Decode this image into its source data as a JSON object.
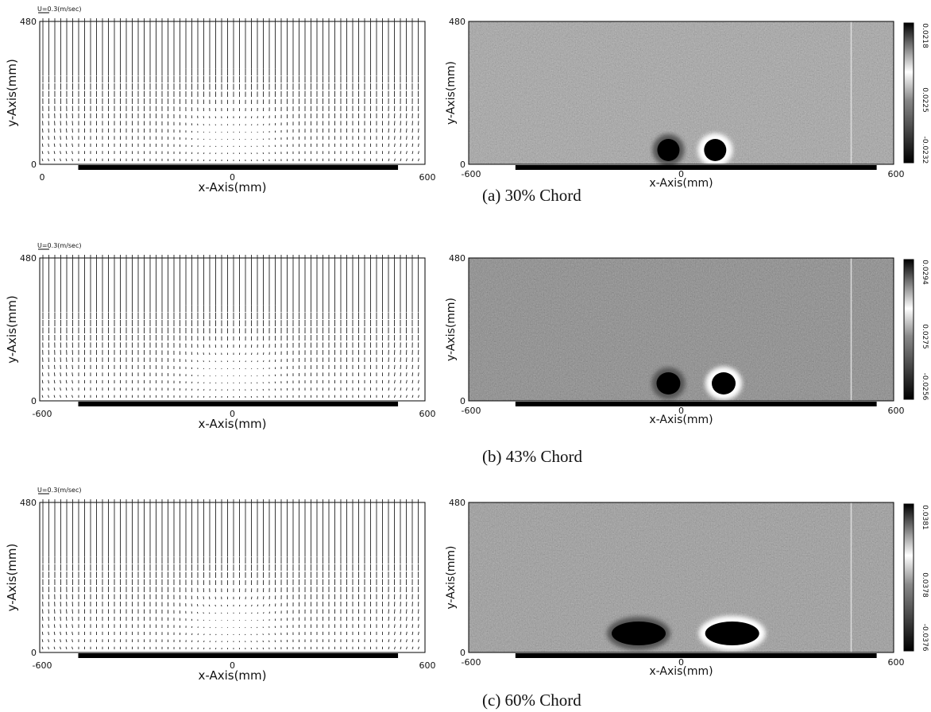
{
  "figures": [
    {
      "vector_plot": {
        "scale_label": "U=0.3(m/sec)",
        "y_label": "y-Axis(mm)",
        "x_label": "x-Axis(mm)",
        "y_ticks": [
          "480",
          "0"
        ],
        "x_ticks": [
          "0",
          "0",
          "600"
        ]
      },
      "contour_plot": {
        "y_label": "y-Axis(mm)",
        "x_label": "x-Axis(mm)",
        "y_ticks": [
          "480",
          "0"
        ],
        "x_ticks": [
          "-600",
          "0",
          "600"
        ],
        "colorbar_labels": [
          "0.0218",
          "0.0225",
          "-0.0232"
        ]
      },
      "caption": "(a) 30% Chord"
    },
    {
      "vector_plot": {
        "scale_label": "U=0.3(m/sec)",
        "y_label": "y-Axis(mm)",
        "x_label": "x-Axis(mm)",
        "y_ticks": [
          "480",
          "0"
        ],
        "x_ticks": [
          "-600",
          "0",
          "600"
        ]
      },
      "contour_plot": {
        "y_label": "y-Axis(mm)",
        "x_label": "x-Axis(mm)",
        "y_ticks": [
          "480",
          "0"
        ],
        "x_ticks": [
          "-600",
          "0",
          "600"
        ],
        "colorbar_labels": [
          "0.0294",
          "0.0275",
          "-0.0256"
        ]
      },
      "caption": "(b) 43% Chord"
    },
    {
      "vector_plot": {
        "scale_label": "U=0.3(m/sec)",
        "y_label": "y-Axis(mm)",
        "x_label": "x-Axis(mm)",
        "y_ticks": [
          "480",
          "0"
        ],
        "x_ticks": [
          "-600",
          "0",
          "600"
        ]
      },
      "contour_plot": {
        "y_label": "y-Axis(mm)",
        "x_label": "x-Axis(mm)",
        "y_ticks": [
          "480",
          "0"
        ],
        "x_ticks": [
          "-600",
          "0",
          "600"
        ],
        "colorbar_labels": [
          "0.0381",
          "0.0378",
          "-0.0376"
        ]
      },
      "caption": "(c) 60% Chord"
    }
  ]
}
